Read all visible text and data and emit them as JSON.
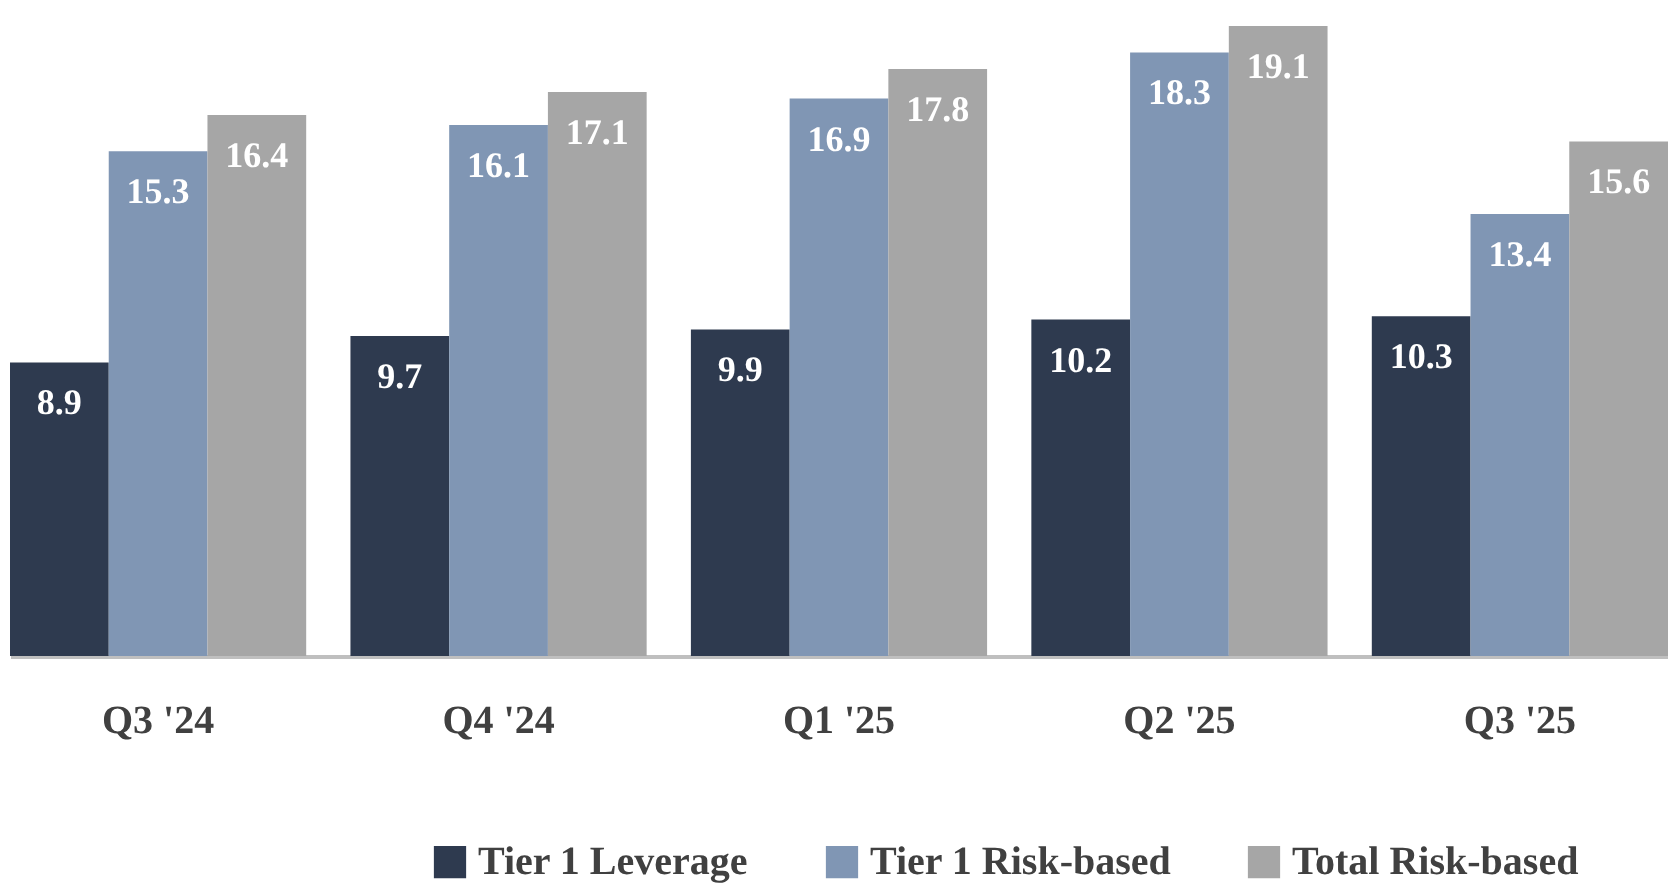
{
  "chart_data": {
    "type": "bar",
    "categories": [
      "Q3 '24",
      "Q4 '24",
      "Q1 '25",
      "Q2 '25",
      "Q3 '25"
    ],
    "series": [
      {
        "name": "Tier 1 Leverage",
        "color": "#2e3a4f",
        "values": [
          8.9,
          9.7,
          9.9,
          10.2,
          10.3
        ]
      },
      {
        "name": "Tier 1 Risk-based",
        "color": "#8096b4",
        "values": [
          15.3,
          16.1,
          16.9,
          18.3,
          13.4
        ]
      },
      {
        "name": "Total Risk-based",
        "color": "#a6a6a6",
        "values": [
          16.4,
          17.1,
          17.8,
          19.1,
          15.6
        ]
      }
    ],
    "data_labels": true,
    "grid": false,
    "legend": "bottom"
  }
}
